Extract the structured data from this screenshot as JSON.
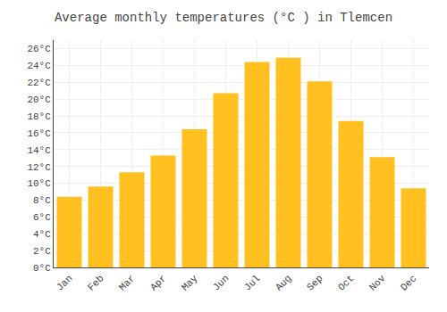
{
  "chart_data": {
    "type": "bar",
    "title": "Average monthly temperatures (°C ) in Tlemcen",
    "categories": [
      "Jan",
      "Feb",
      "Mar",
      "Apr",
      "May",
      "Jun",
      "Jul",
      "Aug",
      "Sep",
      "Oct",
      "Nov",
      "Dec"
    ],
    "values": [
      8.4,
      9.6,
      11.3,
      13.3,
      16.4,
      20.7,
      24.4,
      24.9,
      22.1,
      17.4,
      13.1,
      9.4
    ],
    "color": "#FFC020",
    "ylim": [
      0,
      27
    ],
    "yticks": [
      {
        "value": 0,
        "label": "0°C"
      },
      {
        "value": 2,
        "label": "2°C"
      },
      {
        "value": 4,
        "label": "4°C"
      },
      {
        "value": 6,
        "label": "6°C"
      },
      {
        "value": 8,
        "label": "8°C"
      },
      {
        "value": 10,
        "label": "10°C"
      },
      {
        "value": 12,
        "label": "12°C"
      },
      {
        "value": 14,
        "label": "14°C"
      },
      {
        "value": 16,
        "label": "16°C"
      },
      {
        "value": 18,
        "label": "18°C"
      },
      {
        "value": 20,
        "label": "20°C"
      },
      {
        "value": 22,
        "label": "22°C"
      },
      {
        "value": 24,
        "label": "24°C"
      },
      {
        "value": 26,
        "label": "26°C"
      }
    ],
    "grid": true
  }
}
